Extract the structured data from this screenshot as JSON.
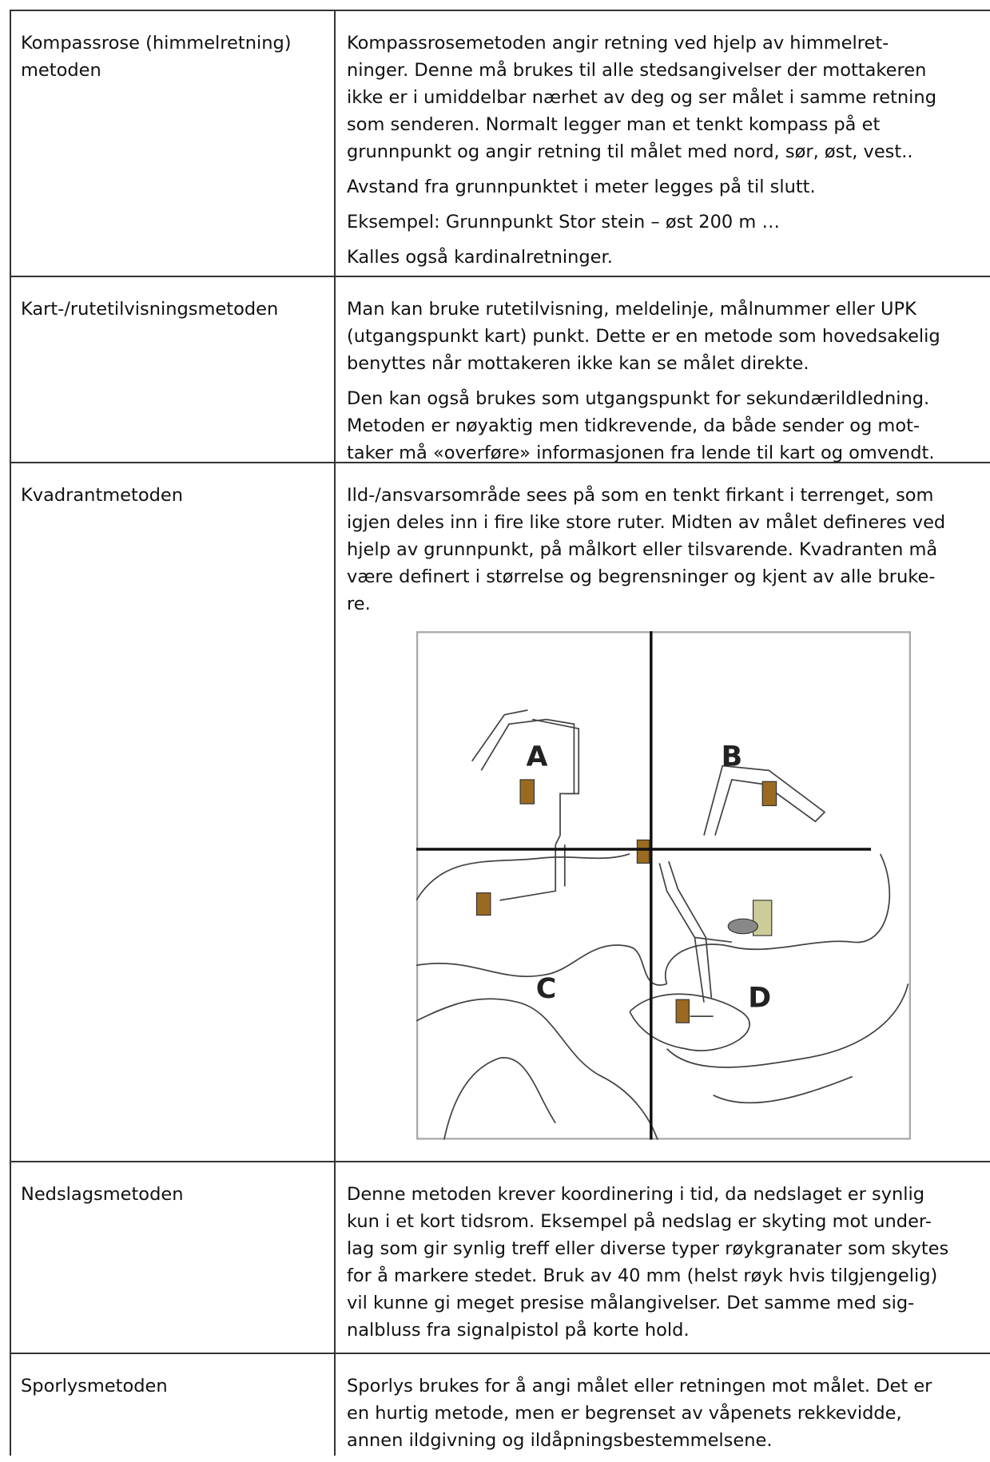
{
  "rows": [
    {
      "label": [
        "Kompassrose (himmelretning)",
        "metoden"
      ],
      "paragraphs": [
        [
          "Kompassrosemetoden angir retning ved hjelp av himmelret-",
          "ninger. Denne må brukes til alle stedsangivelser der mottakeren",
          "ikke er i umiddelbar nærhet av deg og ser målet i samme retning",
          "som senderen. Normalt legger man et tenkt kompass på et",
          "grunnpunkt og angir retning til målet med nord, sør, øst, vest.."
        ],
        [
          "Avstand fra grunnpunktet i meter legges på til slutt."
        ],
        [
          "Eksempel: Grunnpunkt Stor stein – øst 200 m …"
        ],
        [
          "Kalles også kardinalretninger."
        ]
      ]
    },
    {
      "label": [
        "Kart-/rutetilvisningsmetoden"
      ],
      "paragraphs": [
        [
          "Man kan bruke rutetilvisning, meldelinje, målnummer eller UPK",
          "(utgangspunkt kart) punkt. Dette er en metode som hovedsakelig",
          "benyttes når mottakeren ikke kan se målet direkte."
        ],
        [
          "Den kan også brukes som utgangspunkt for sekundærildledning.",
          "Metoden er nøyaktig men tidkrevende, da både sender og mot-",
          "taker må «overføre» informasjonen fra lende til kart og omvendt."
        ]
      ]
    },
    {
      "label": [
        "Kvadrantmetoden"
      ],
      "paragraphs": [
        [
          "Ild-/ansvarsområde sees på som en tenkt firkant i terrenget, som",
          "igjen deles inn i fire like store ruter. Midten av målet defineres ved",
          "hjelp av grunnpunkt, på målkort eller tilsvarende. Kvadranten må",
          "være definert i størrelse og begrensninger og kjent av alle bruke-",
          "re."
        ]
      ],
      "figure": {
        "labels": [
          "A",
          "B",
          "C",
          "D"
        ]
      }
    },
    {
      "label": [
        "Nedslagsmetoden"
      ],
      "paragraphs": [
        [
          "Denne metoden krever koordinering i tid, da nedslaget er synlig",
          "kun i et kort tidsrom. Eksempel på nedslag er skyting mot under-",
          "lag som gir synlig treff eller diverse typer røykgranater som skytes",
          "for å markere stedet. Bruk av 40 mm (helst røyk hvis tilgjengelig)",
          "vil kunne gi meget presise målangivelser. Det samme med sig-",
          "nalbluss fra signalpistol på korte hold."
        ]
      ]
    },
    {
      "label": [
        "Sporlysmetoden"
      ],
      "paragraphs": [
        [
          "Sporlys brukes for å angi målet eller retningen mot målet. Det er",
          "en hurtig metode, men er begrenset av våpenets rekkevidde,",
          "annen ildgivning og ildåpningsbestemmelsene."
        ]
      ]
    }
  ]
}
